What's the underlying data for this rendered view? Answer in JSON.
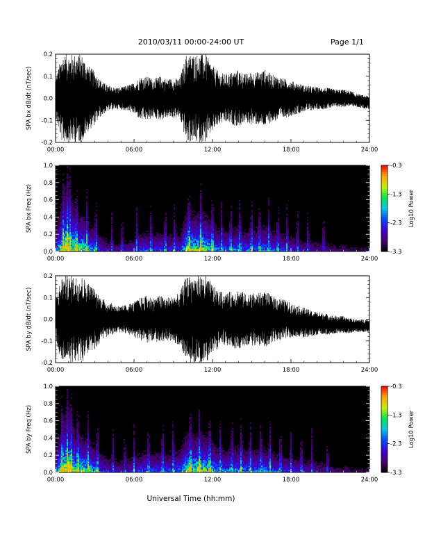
{
  "header": {
    "title": "2010/03/11  00:00-24:00 UT",
    "page": "Page 1/1"
  },
  "xlabel": "Universal Time (hh:mm)",
  "x_ticks": [
    "00:00",
    "06:00",
    "12:00",
    "18:00",
    "24:00"
  ],
  "colorbar": {
    "label": "Log10 Power",
    "tick_labels": [
      "-0.3",
      "-1.3",
      "-2.3",
      "-3.3"
    ]
  },
  "colors": {
    "trace": "#000000",
    "spectrogram_background": "#000000"
  },
  "chart_data": [
    {
      "type": "line",
      "ylabel": "SPA bx dB/dt (nT/sec)",
      "ylim": [
        -0.2,
        0.2
      ],
      "y_ticks": [
        "0.2",
        "0.1",
        "0.0",
        "-0.1",
        "-0.2"
      ],
      "xlim": [
        0,
        24
      ],
      "x_unit": "hours UT",
      "envelope": {
        "x": [
          0,
          0.5,
          1,
          1.5,
          2,
          2.5,
          3,
          3.5,
          4,
          4.5,
          5,
          5.5,
          6,
          6.5,
          7,
          7.5,
          8,
          8.5,
          9,
          9.5,
          10,
          10.5,
          11,
          11.5,
          12,
          12.5,
          13,
          13.5,
          14,
          14.5,
          15,
          15.5,
          16,
          16.5,
          17,
          17.5,
          18,
          18.5,
          19,
          19.5,
          20,
          20.5,
          21,
          21.5,
          22,
          22.5,
          23,
          23.5,
          24
        ],
        "amplitude": [
          0.09,
          0.2,
          0.2,
          0.2,
          0.2,
          0.15,
          0.12,
          0.08,
          0.06,
          0.05,
          0.05,
          0.06,
          0.07,
          0.1,
          0.1,
          0.09,
          0.1,
          0.09,
          0.09,
          0.09,
          0.2,
          0.2,
          0.2,
          0.2,
          0.15,
          0.12,
          0.11,
          0.12,
          0.13,
          0.11,
          0.12,
          0.12,
          0.13,
          0.11,
          0.1,
          0.09,
          0.08,
          0.07,
          0.06,
          0.055,
          0.05,
          0.05,
          0.045,
          0.04,
          0.04,
          0.035,
          0.03,
          0.03,
          0.03
        ],
        "offset": [
          0,
          0,
          0,
          0,
          0,
          0,
          0,
          0,
          0,
          0,
          0,
          0,
          0,
          0,
          0,
          0,
          0,
          0,
          0,
          0,
          0,
          0,
          0,
          0,
          0,
          0,
          0,
          0,
          0,
          0,
          0,
          0,
          0,
          0,
          0,
          0,
          0,
          0,
          0,
          0,
          0,
          0,
          0,
          0,
          0,
          0,
          -0.01,
          -0.015,
          -0.02
        ]
      }
    },
    {
      "type": "heatmap",
      "ylabel": "SPA bx Freq (Hz)",
      "ylim": [
        0,
        1.0
      ],
      "y_ticks": [
        "1.0",
        "0.8",
        "0.6",
        "0.4",
        "0.2",
        "0.0"
      ],
      "xlim": [
        0,
        24
      ],
      "zlim": [
        -3.3,
        -0.3
      ],
      "burst_hours": [
        0.6,
        0.9,
        1.1,
        1.6,
        2.4,
        3.1,
        4.3,
        5.1,
        6.2,
        7.3,
        8.4,
        9.1,
        10.2,
        11.1,
        12.0,
        12.7,
        13.4,
        14.1,
        15.0,
        15.6,
        16.3,
        17.0,
        17.7,
        18.5,
        19.3,
        20.5
      ]
    },
    {
      "type": "line",
      "ylabel": "SPA by dB/dt (nT/sec)",
      "ylim": [
        -0.2,
        0.2
      ],
      "y_ticks": [
        "0.2",
        "0.1",
        "0.0",
        "-0.1",
        "-0.2"
      ],
      "xlim": [
        0,
        24
      ],
      "x_unit": "hours UT",
      "envelope": {
        "x": [
          0,
          0.5,
          1,
          1.5,
          2,
          2.5,
          3,
          3.5,
          4,
          4.5,
          5,
          5.5,
          6,
          6.5,
          7,
          7.5,
          8,
          8.5,
          9,
          9.5,
          10,
          10.5,
          11,
          11.5,
          12,
          12.5,
          13,
          13.5,
          14,
          14.5,
          15,
          15.5,
          16,
          16.5,
          17,
          17.5,
          18,
          18.5,
          19,
          19.5,
          20,
          20.5,
          21,
          21.5,
          22,
          22.5,
          23,
          23.5,
          24
        ],
        "amplitude": [
          0.1,
          0.2,
          0.2,
          0.2,
          0.2,
          0.17,
          0.14,
          0.1,
          0.08,
          0.07,
          0.06,
          0.07,
          0.08,
          0.1,
          0.11,
          0.1,
          0.11,
          0.1,
          0.11,
          0.12,
          0.2,
          0.2,
          0.2,
          0.2,
          0.16,
          0.13,
          0.12,
          0.13,
          0.14,
          0.12,
          0.12,
          0.12,
          0.13,
          0.11,
          0.1,
          0.09,
          0.08,
          0.075,
          0.07,
          0.06,
          0.055,
          0.05,
          0.045,
          0.04,
          0.04,
          0.035,
          0.03,
          0.03,
          0.03
        ],
        "offset": [
          0,
          0,
          0,
          0,
          0,
          0,
          0,
          0,
          0,
          0,
          0,
          0,
          0,
          0,
          0,
          0,
          0,
          0,
          0,
          0,
          0,
          0,
          0,
          0,
          0,
          0,
          0,
          0,
          0,
          0,
          0,
          0,
          0,
          0,
          0,
          0,
          -0.005,
          -0.01,
          -0.015,
          -0.02,
          -0.02,
          -0.02,
          -0.025,
          -0.025,
          -0.025,
          -0.03,
          -0.03,
          -0.03,
          -0.03
        ]
      }
    },
    {
      "type": "heatmap",
      "ylabel": "SPA by Freq (Hz)",
      "ylim": [
        0,
        1.0
      ],
      "y_ticks": [
        "1.0",
        "0.8",
        "0.6",
        "0.4",
        "0.2",
        "0.0"
      ],
      "xlim": [
        0,
        24
      ],
      "zlim": [
        -3.3,
        -0.3
      ],
      "burst_hours": [
        0.5,
        0.9,
        1.2,
        1.7,
        2.5,
        3.2,
        4.4,
        5.3,
        6.0,
        7.1,
        8.2,
        9.0,
        10.3,
        11.0,
        11.8,
        12.6,
        13.5,
        14.2,
        14.9,
        15.7,
        16.4,
        17.2,
        18.0,
        18.8,
        19.6,
        20.8
      ]
    }
  ]
}
